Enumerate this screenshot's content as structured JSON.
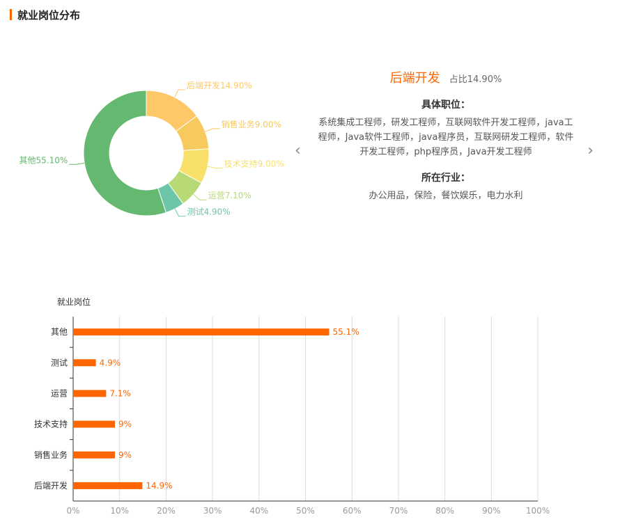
{
  "header": {
    "title": "就业岗位分布"
  },
  "detail": {
    "title": "后端开发",
    "share": "占比14.90%",
    "positions_heading": "具体职位：",
    "positions": "系统集成工程师，研发工程师，互联网软件开发工程师，java工程师，Java软件工程师，java程序员，互联网研发工程师，软件开发工程师，php程序员，Java开发工程师",
    "industry_heading": "所在行业：",
    "industries": "办公用品，保险，餐饮娱乐，电力水利",
    "prev_icon": "chevron-left-icon",
    "next_icon": "chevron-right-icon"
  },
  "colors": {
    "accent": "#ff6600",
    "slices": [
      "#fec869",
      "#f6ca5f",
      "#f8e06a",
      "#b8da76",
      "#6ec6aa",
      "#65b86f"
    ]
  },
  "chart_data": [
    {
      "type": "pie",
      "categories": [
        "后端开发",
        "销售业务",
        "技术支持",
        "运营",
        "测试",
        "其他"
      ],
      "values": [
        14.9,
        9.0,
        9.0,
        7.1,
        4.9,
        55.1
      ],
      "labels": [
        "后端开发14.90%",
        "销售业务9.00%",
        "技术支持9.00%",
        "运营7.10%",
        "测试4.90%",
        "其他55.10%"
      ],
      "hole": "donut"
    },
    {
      "type": "bar",
      "orientation": "horizontal",
      "ylabel": "就业岗位",
      "categories": [
        "其他",
        "测试",
        "运营",
        "技术支持",
        "销售业务",
        "后端开发"
      ],
      "values": [
        55.1,
        4.9,
        7.1,
        9,
        9,
        14.9
      ],
      "value_labels": [
        "55.1%",
        "4.9%",
        "7.1%",
        "9%",
        "9%",
        "14.9%"
      ],
      "xlim": [
        0,
        100
      ],
      "xticks": [
        "0%",
        "10%",
        "20%",
        "30%",
        "40%",
        "50%",
        "60%",
        "70%",
        "80%",
        "90%",
        "100%"
      ],
      "grid": true
    }
  ]
}
